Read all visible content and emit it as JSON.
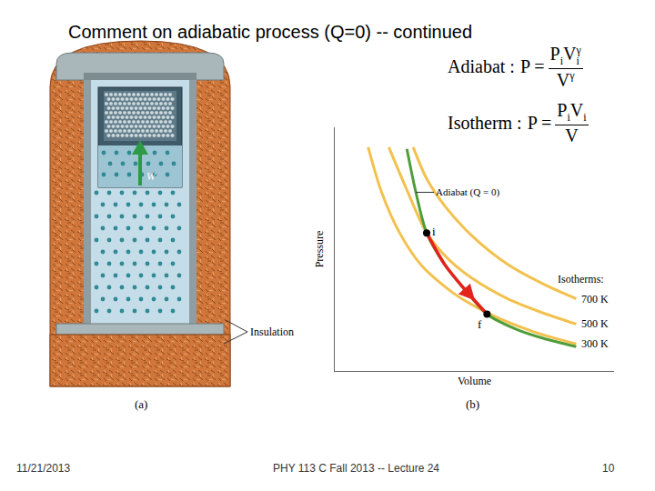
{
  "title": "Comment on adiabatic process (Q=0) -- continued",
  "equations": [
    {
      "name": "Adiabat :",
      "lhs": "P =",
      "numerator": [
        {
          "base": "P",
          "sub": "i"
        },
        {
          "base": "V",
          "sub": "i",
          "sup": "γ"
        }
      ],
      "denominator": [
        {
          "base": "V",
          "sup": "γ"
        }
      ]
    },
    {
      "name": "Isotherm :",
      "lhs": "P =",
      "numerator": [
        {
          "base": "P",
          "sub": "i"
        },
        {
          "base": "V",
          "sub": "i"
        }
      ],
      "denominator": [
        {
          "base": "V"
        }
      ]
    }
  ],
  "diagram": {
    "caption": "(a)",
    "work_label": "W",
    "insulation_label": "Insulation"
  },
  "chart_data": {
    "type": "line",
    "x_label": "Volume",
    "y_label": "Pressure",
    "xlim": [
      0,
      310
    ],
    "ylim": [
      0,
      270
    ],
    "xticks": [],
    "yticks": [],
    "tick_labels": false,
    "grid": false,
    "isotherms_heading": "Isotherms:",
    "caption": "(b)",
    "series": [
      {
        "name": "700 K",
        "color": "#f2c14e",
        "x": [
          87,
          102,
          122,
          152,
          192,
          232,
          268
        ],
        "values": [
          248,
          213,
          183,
          150,
          118,
          96,
          80
        ]
      },
      {
        "name": "500 K",
        "color": "#f2c14e",
        "x": [
          60,
          79,
          102,
          127,
          152,
          192,
          232,
          268
        ],
        "values": [
          248,
          203,
          153,
          123,
          103,
          80,
          64,
          52
        ]
      },
      {
        "name": "300 K",
        "color": "#f2c14e",
        "x": [
          37,
          52,
          72,
          97,
          132,
          172,
          222,
          268
        ],
        "values": [
          248,
          198,
          153,
          116,
          86,
          63,
          43,
          30
        ]
      },
      {
        "name": "Adiabat (Q = 0)",
        "color": "#4f9d3a",
        "x": [
          80,
          90,
          102,
          122,
          142,
          169,
          202,
          232,
          268
        ],
        "values": [
          246,
          198,
          153,
          118,
          93,
          63,
          46,
          36,
          27
        ],
        "points": [
          {
            "label": "i",
            "x": 102,
            "y": 153
          },
          {
            "label": "f",
            "x": 169,
            "y": 63
          }
        ],
        "process": {
          "from": "i",
          "to": "f",
          "color": "#e3231c"
        }
      }
    ]
  },
  "footer": {
    "date": "11/21/2013",
    "course": "PHY 113 C  Fall 2013 -- Lecture 24",
    "page": 10
  }
}
